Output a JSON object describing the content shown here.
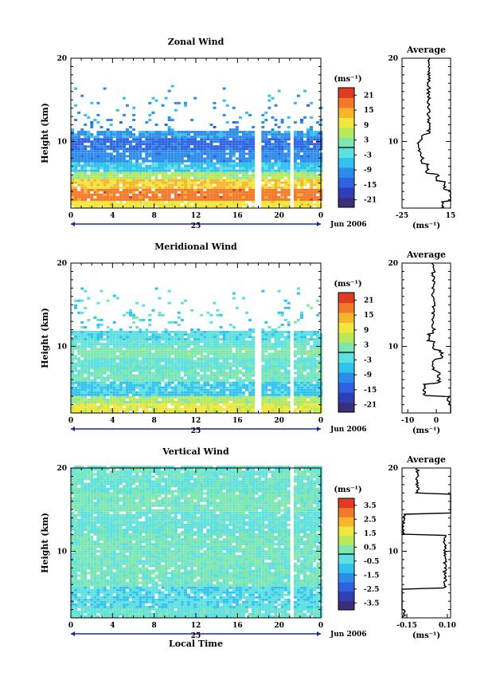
{
  "chart_data": [
    {
      "type": "heatmap",
      "title": "Zonal Wind",
      "ylabel": "Height (km)",
      "xlabel": "",
      "x_ticks": [
        "0",
        "4",
        "8",
        "12",
        "16",
        "20",
        "0"
      ],
      "xlim": [
        0,
        24
      ],
      "y_ticks": [
        "10",
        "20"
      ],
      "ylim": [
        2,
        20
      ],
      "date_marker": "25",
      "date_label": "Jun 2006",
      "colorbar": {
        "unit": "(ms⁻¹)",
        "ticks": [
          "21",
          "15",
          "9",
          "3",
          "-3",
          "-9",
          "-15",
          "-21"
        ],
        "range": [
          -24,
          24
        ]
      },
      "profile": {
        "title": "Average",
        "unit": "(ms⁻¹)",
        "x_ticks": [
          "-25",
          "15"
        ],
        "xlim": [
          -25,
          15
        ],
        "y_ticks": [
          "10",
          "20"
        ]
      },
      "bands": [
        {
          "from": 2.0,
          "to": 2.8,
          "value": 10
        },
        {
          "from": 2.8,
          "to": 4.2,
          "value": 18
        },
        {
          "from": 4.2,
          "to": 5.2,
          "value": 12
        },
        {
          "from": 5.2,
          "to": 6.2,
          "value": 5
        },
        {
          "from": 6.2,
          "to": 7.3,
          "value": -5
        },
        {
          "from": 7.3,
          "to": 8.8,
          "value": -10
        },
        {
          "from": 8.8,
          "to": 10.2,
          "value": -13
        },
        {
          "from": 10.2,
          "to": 11.0,
          "value": -9
        }
      ],
      "gaps_hours": [
        [
          17.5,
          18.0
        ],
        [
          21.0,
          21.3
        ]
      ]
    },
    {
      "type": "heatmap",
      "title": "Meridional Wind",
      "ylabel": "Height (km)",
      "xlabel": "",
      "x_ticks": [
        "0",
        "4",
        "8",
        "12",
        "16",
        "20",
        "0"
      ],
      "xlim": [
        0,
        24
      ],
      "y_ticks": [
        "10",
        "20"
      ],
      "ylim": [
        2,
        20
      ],
      "date_marker": "25",
      "date_label": "Jun 2006",
      "colorbar": {
        "unit": "(ms⁻¹)",
        "ticks": [
          "21",
          "15",
          "9",
          "3",
          "-3",
          "-9",
          "-15",
          "-21"
        ],
        "range": [
          -24,
          24
        ]
      },
      "profile": {
        "title": "Average",
        "unit": "(ms⁻¹)",
        "x_ticks": [
          "-10",
          "0"
        ],
        "xlim": [
          -12,
          5
        ],
        "y_ticks": [
          "10",
          "20"
        ]
      },
      "bands": [
        {
          "from": 2.0,
          "to": 3.0,
          "value": 9
        },
        {
          "from": 3.0,
          "to": 4.0,
          "value": 5
        },
        {
          "from": 4.0,
          "to": 5.6,
          "value": -5
        },
        {
          "from": 5.6,
          "to": 7.0,
          "value": 1
        },
        {
          "from": 7.0,
          "to": 8.6,
          "value": -1
        },
        {
          "from": 8.6,
          "to": 9.6,
          "value": 2
        },
        {
          "from": 9.6,
          "to": 10.6,
          "value": -1
        },
        {
          "from": 10.6,
          "to": 11.6,
          "value": -3
        }
      ],
      "gaps_hours": [
        [
          17.6,
          18.0
        ],
        [
          21.0,
          21.3
        ]
      ]
    },
    {
      "type": "heatmap",
      "title": "Vertical Wind",
      "ylabel": "Height (km)",
      "xlabel": "Local Time",
      "x_ticks": [
        "0",
        "4",
        "8",
        "12",
        "16",
        "20",
        "0"
      ],
      "xlim": [
        0,
        24
      ],
      "y_ticks": [
        "10",
        "20"
      ],
      "ylim": [
        2,
        20
      ],
      "date_marker": "25",
      "date_label": "Jun 2006",
      "colorbar": {
        "unit": "(ms⁻¹)",
        "ticks": [
          "3.5",
          "2.5",
          "1.5",
          "0.5",
          "-0.5",
          "-1.5",
          "-2.5",
          "-3.5"
        ],
        "range": [
          -4,
          4
        ]
      },
      "profile": {
        "title": "Average",
        "unit": "(ms⁻¹)",
        "x_ticks": [
          "-0.15",
          "0.10"
        ],
        "xlim": [
          -0.18,
          0.12
        ],
        "y_ticks": [
          "10",
          "20"
        ]
      },
      "bands": [
        {
          "from": 2.0,
          "to": 3.0,
          "value": -0.2
        },
        {
          "from": 3.0,
          "to": 5.5,
          "value": -0.6
        },
        {
          "from": 5.5,
          "to": 12.0,
          "value": 0.1
        },
        {
          "from": 12.0,
          "to": 14.5,
          "value": -0.2
        },
        {
          "from": 14.5,
          "to": 17.0,
          "value": 0.2
        },
        {
          "from": 17.0,
          "to": 20.0,
          "value": -0.1
        }
      ],
      "gaps_hours": [
        [
          21.0,
          21.3
        ]
      ]
    }
  ],
  "colors": {
    "colormap": [
      "#3a2f7a",
      "#2f3fb5",
      "#2f62e0",
      "#2e8ce8",
      "#33c2ee",
      "#5ee0e0",
      "#7fe6b0",
      "#b9e85a",
      "#f0e63c",
      "#f7b52c",
      "#f2782a",
      "#e03a24"
    ],
    "contour": "#000000",
    "axis": "#000000",
    "axis_blue": "#1a2a9c"
  }
}
